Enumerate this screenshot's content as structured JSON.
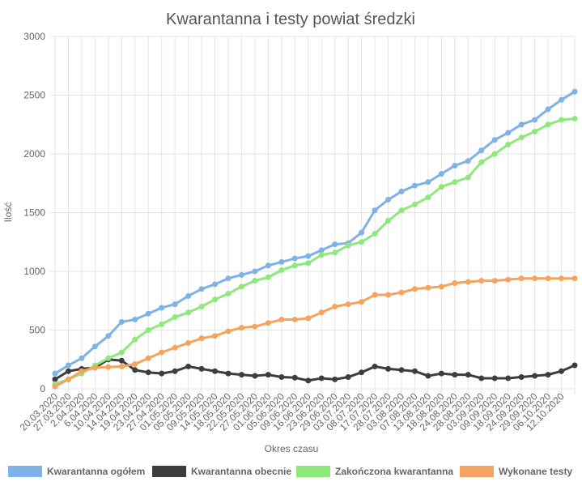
{
  "chart_data": {
    "type": "line",
    "title": "Kwarantanna i testy powiat średzki",
    "x_label": "Okres czasu",
    "y_label": "Ilość",
    "categories": [
      "20.03.2020",
      "27.03.2020",
      "2.04.2020",
      "6.04.2020",
      "10.04.2020",
      "14.04.2020",
      "19.04.2020",
      "23.04.2020",
      "27.04.2020",
      "01.05.2020",
      "05.05.2020",
      "09.05.2020",
      "14.05.2020",
      "18.05.2020",
      "22.05.2020",
      "27.05.2020",
      "01.06.2020",
      "05.06.2020",
      "09.06.2020",
      "16.06.2020",
      "23.06.2020",
      "29.06.2020",
      "03.07.2020",
      "08.07.2020",
      "17.07.2020",
      "28.07.2020",
      "03.08.2020",
      "07.08.2020",
      "13.08.2020",
      "18.08.2020",
      "24.08.2020",
      "28.08.2020",
      "03.09.2020",
      "09.09.2020",
      "18.09.2020",
      "24.09.2020",
      "29.09.2020",
      "06.10.2020",
      "12.10.2020",
      null
    ],
    "series": [
      {
        "name": "Kwarantanna ogółem",
        "color": "#7eb2e8",
        "values": [
          130,
          200,
          260,
          360,
          450,
          570,
          590,
          640,
          690,
          720,
          790,
          850,
          890,
          940,
          970,
          1000,
          1050,
          1080,
          1110,
          1130,
          1180,
          1230,
          1240,
          1330,
          1520,
          1610,
          1680,
          1730,
          1760,
          1830,
          1900,
          1940,
          2030,
          2120,
          2180,
          2250,
          2290,
          2380,
          2460,
          2530
        ]
      },
      {
        "name": "Kwarantanna obecnie",
        "color": "#3d3d3d",
        "values": [
          80,
          150,
          170,
          180,
          250,
          240,
          160,
          140,
          130,
          150,
          190,
          170,
          150,
          130,
          120,
          110,
          120,
          100,
          95,
          70,
          90,
          80,
          100,
          140,
          190,
          170,
          160,
          150,
          110,
          130,
          120,
          120,
          90,
          90,
          90,
          100,
          110,
          120,
          150,
          200
        ]
      },
      {
        "name": "Zakończona kwarantanna",
        "color": "#8ee87c",
        "values": [
          40,
          80,
          130,
          200,
          260,
          310,
          420,
          500,
          550,
          610,
          650,
          700,
          760,
          810,
          870,
          920,
          950,
          1010,
          1050,
          1070,
          1140,
          1160,
          1220,
          1250,
          1320,
          1430,
          1520,
          1570,
          1630,
          1720,
          1760,
          1800,
          1930,
          2000,
          2080,
          2140,
          2190,
          2250,
          2290,
          2300
        ]
      },
      {
        "name": "Wykonane testy",
        "color": "#f4a460",
        "values": [
          20,
          80,
          150,
          180,
          185,
          190,
          210,
          260,
          310,
          350,
          390,
          430,
          450,
          490,
          520,
          530,
          560,
          590,
          590,
          600,
          650,
          700,
          720,
          740,
          800,
          800,
          820,
          850,
          860,
          870,
          900,
          910,
          920,
          920,
          930,
          940,
          940,
          940,
          940,
          940
        ]
      }
    ],
    "ylim": [
      0,
      3000
    ],
    "yticks": [
      0,
      500,
      1000,
      1500,
      2000,
      2500,
      3000
    ],
    "grid": true,
    "legend": "bottom"
  }
}
